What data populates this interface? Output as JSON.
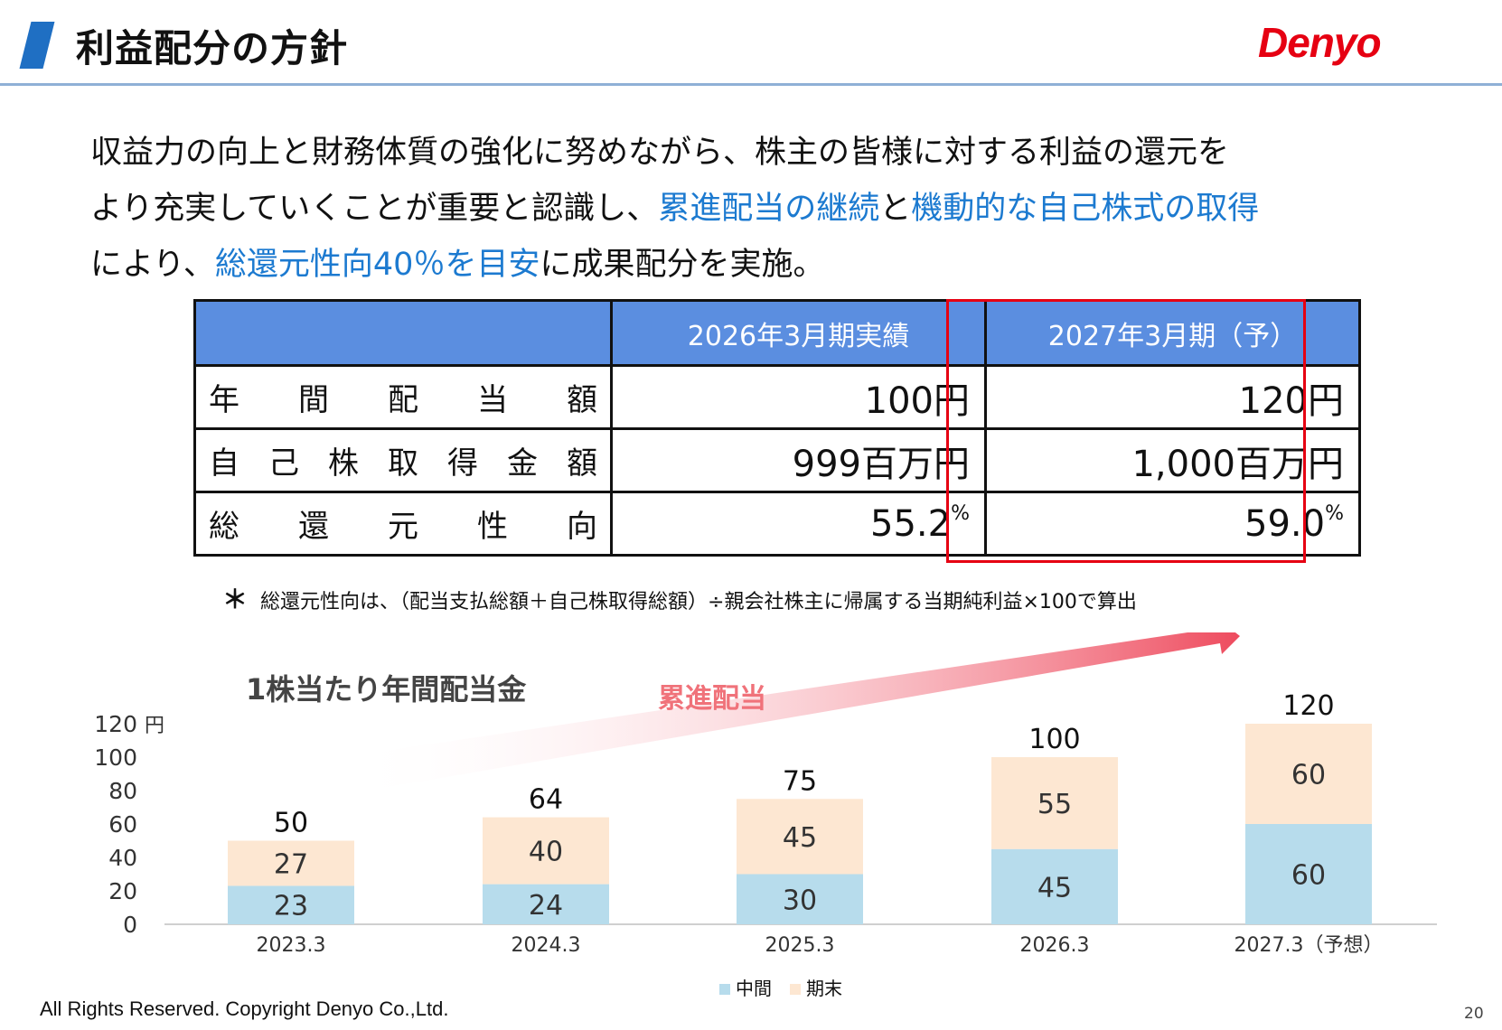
{
  "header": {
    "title": "利益配分の方針",
    "logo_text": "Denyo"
  },
  "intro": {
    "line1": "収益力の向上と財務体質の強化に努めながら、株主の皆様に対する利益の還元を",
    "line2_a": "より充実していくことが重要と認識し、",
    "line2_b": "累進配当の継続",
    "line2_c": "と",
    "line2_d": "機動的な自己株式の取得",
    "line3_a": "により、",
    "line3_b": "総還元性向40％を目安",
    "line3_c": "に成果配分を実施。"
  },
  "table": {
    "headers": [
      "",
      "2026年3月期実績",
      "2027年3月期（予）"
    ],
    "rows": [
      {
        "label_chars": [
          "年",
          "間",
          "配",
          "当",
          "額"
        ],
        "v2026": "100円",
        "v2027": "120円"
      },
      {
        "label_chars": [
          "自",
          "己",
          "株",
          "取",
          "得",
          "金",
          "額"
        ],
        "v2026": "999百万円",
        "v2027": "1,000百万円"
      },
      {
        "label_chars": [
          "総",
          "還",
          "元",
          "性",
          "向"
        ],
        "v2026": "55.2",
        "v2027": "59.0",
        "unit": "%"
      }
    ]
  },
  "note": {
    "star": "＊",
    "text": "総還元性向は、（配当支払総額＋自己株取得総額）÷親会社株主に帰属する当期純利益×100で算出"
  },
  "chart": {
    "title": "1株当たり年間配当金",
    "trend_label": "累進配当"
  },
  "chart_data": {
    "type": "bar",
    "stacked": true,
    "categories": [
      "2023.3",
      "2024.3",
      "2025.3",
      "2026.3",
      "2027.3（予想）"
    ],
    "series": [
      {
        "name": "中間",
        "values": [
          23,
          24,
          30,
          45,
          60
        ],
        "color": "#b7dcec"
      },
      {
        "name": "期末",
        "values": [
          27,
          40,
          45,
          55,
          60
        ],
        "color": "#fde7d2"
      }
    ],
    "totals": [
      50,
      64,
      75,
      100,
      120
    ],
    "ylim": [
      0,
      120
    ],
    "yticks": [
      0,
      20,
      40,
      60,
      80,
      100,
      120
    ],
    "yunit": "円",
    "legend_position": "bottom"
  },
  "footer": {
    "copyright": "All Rights Reserved. Copyright Denyo Co.,Ltd.",
    "page_number": "20"
  }
}
